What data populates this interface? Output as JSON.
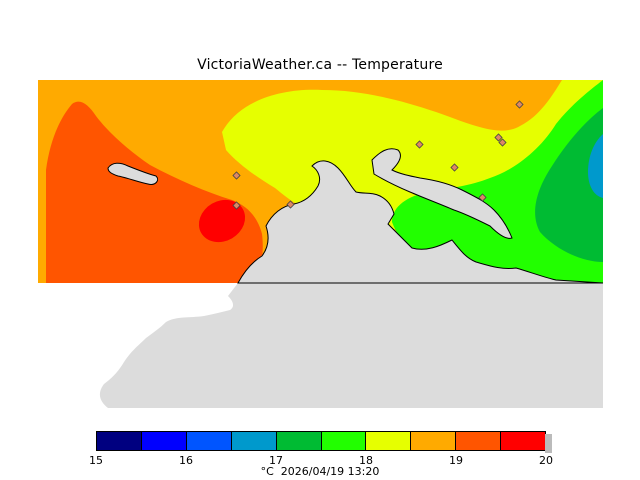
{
  "title": "VictoriaWeather.ca -- Temperature",
  "footer": {
    "unit": "°C",
    "timestamp": "2026/04/19 13:20"
  },
  "legend": {
    "bins": [
      {
        "from": 15,
        "to": 15.5,
        "color": "#000080"
      },
      {
        "from": 15.5,
        "to": 16,
        "color": "#0000ff"
      },
      {
        "from": 16,
        "to": 16.5,
        "color": "#0055ff"
      },
      {
        "from": 16.5,
        "to": 17,
        "color": "#0099cc"
      },
      {
        "from": 17,
        "to": 17.5,
        "color": "#00bb33"
      },
      {
        "from": 17.5,
        "to": 18,
        "color": "#22ff00"
      },
      {
        "from": 18,
        "to": 18.5,
        "color": "#e6ff00"
      },
      {
        "from": 18.5,
        "to": 19,
        "color": "#ffaa00"
      },
      {
        "from": 19,
        "to": 19.5,
        "color": "#ff5500"
      },
      {
        "from": 19.5,
        "to": 20,
        "color": "#ff0000"
      }
    ],
    "tick_labels": [
      "15",
      "16",
      "17",
      "18",
      "19",
      "20"
    ]
  },
  "map": {
    "land_color": "#dcdcdc",
    "station_marker_color": "#dd8866",
    "station_count": 9
  }
}
